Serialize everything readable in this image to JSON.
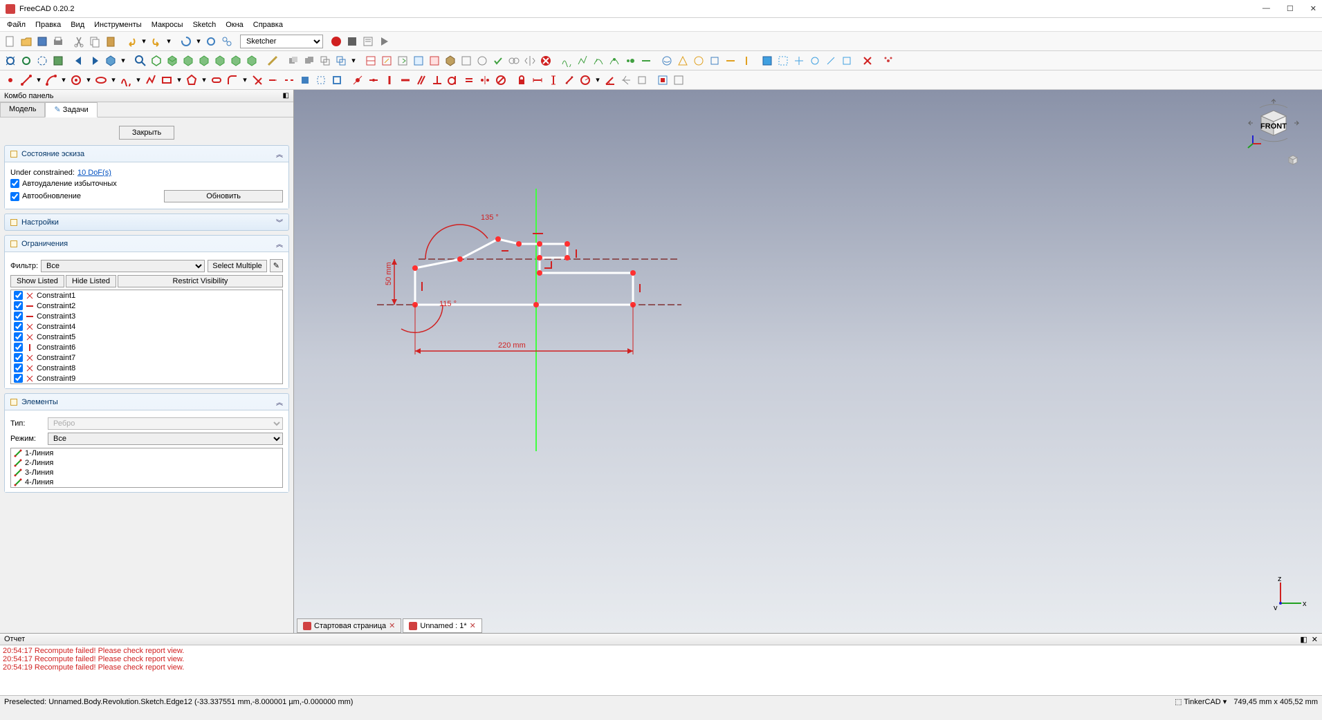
{
  "app": {
    "title": "FreeCAD 0.20.2"
  },
  "menu": [
    "Файл",
    "Правка",
    "Вид",
    "Инструменты",
    "Макросы",
    "Sketch",
    "Окна",
    "Справка"
  ],
  "workspace": "Sketcher",
  "combo": {
    "title": "Комбо панель",
    "tabs": {
      "model": "Модель",
      "tasks": "Задачи"
    },
    "close": "Закрыть"
  },
  "status_section": {
    "title": "Состояние эскиза",
    "under": "Under constrained:",
    "dof": "10 DoF(s)",
    "auto_del": "Автоудаление избыточных",
    "auto_upd": "Автообновление",
    "update": "Обновить"
  },
  "settings_section": {
    "title": "Настройки"
  },
  "constraints_section": {
    "title": "Ограничения",
    "filter_label": "Фильтр:",
    "filter_val": "Все",
    "select_multiple": "Select Multiple",
    "show_listed": "Show Listed",
    "hide_listed": "Hide Listed",
    "restrict": "Restrict Visibility",
    "items": [
      {
        "name": "Constraint1",
        "type": "angle"
      },
      {
        "name": "Constraint2",
        "type": "horiz"
      },
      {
        "name": "Constraint3",
        "type": "horiz"
      },
      {
        "name": "Constraint4",
        "type": "angle"
      },
      {
        "name": "Constraint5",
        "type": "angle"
      },
      {
        "name": "Constraint6",
        "type": "vert"
      },
      {
        "name": "Constraint7",
        "type": "angle"
      },
      {
        "name": "Constraint8",
        "type": "angle"
      },
      {
        "name": "Constraint9",
        "type": "angle"
      }
    ]
  },
  "elements_section": {
    "title": "Элементы",
    "type_label": "Тип:",
    "type_val": "Ребро",
    "mode_label": "Режим:",
    "mode_val": "Все",
    "items": [
      "1-Линия",
      "2-Линия",
      "3-Линия",
      "4-Линия"
    ]
  },
  "doctabs": {
    "start": "Стартовая страница",
    "doc": "Unnamed : 1*"
  },
  "sketch": {
    "angle1": "135 °",
    "angle2": "115 °",
    "dim_v": "50 mm",
    "dim_h": "220 mm",
    "face": "FRONT",
    "colors": {
      "geom": "#ffffff",
      "constraint": "#e01010",
      "axis_x": "#d04040",
      "axis_y": "#40d040",
      "point": "#ff2020"
    }
  },
  "report": {
    "title": "Отчет",
    "lines": [
      "20:54:17  Recompute failed! Please check report view.",
      "20:54:17  Recompute failed! Please check report view.",
      "20:54:19  Recompute failed! Please check report view."
    ]
  },
  "status": {
    "preselect": "Preselected: Unnamed.Body.Revolution.Sketch.Edge12 (-33.337551 mm,-8.000001 µm,-0.000000 mm)",
    "nav": "TinkerCAD",
    "dims": "749,45 mm x 405,52 mm"
  }
}
